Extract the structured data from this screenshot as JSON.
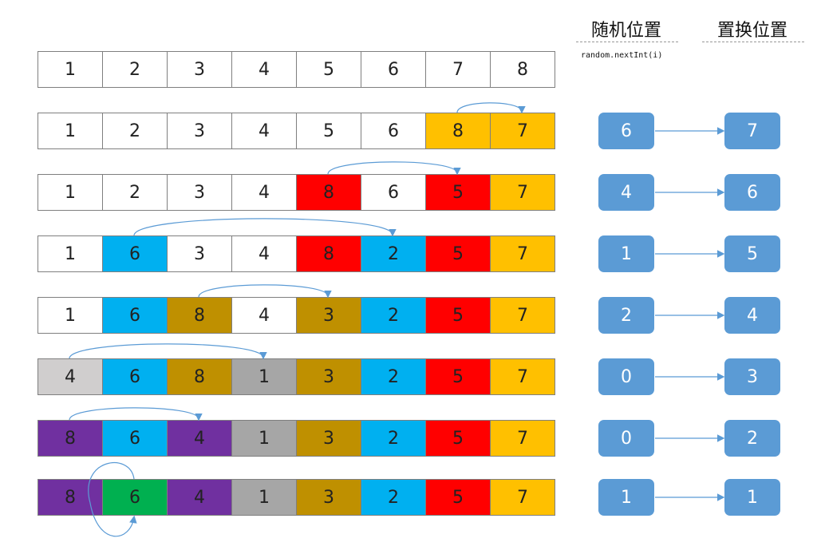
{
  "headers": {
    "random_position": "随机位置",
    "swap_position": "置换位置",
    "code": "random.nextInt(i)"
  },
  "colors": {
    "box": "#5b9bd5",
    "arrow": "#5b9bd5"
  },
  "rows": [
    {
      "values": [
        "1",
        "2",
        "3",
        "4",
        "5",
        "6",
        "7",
        "8"
      ],
      "colors": [
        "#fff",
        "#fff",
        "#fff",
        "#fff",
        "#fff",
        "#fff",
        "#fff",
        "#fff"
      ]
    },
    {
      "values": [
        "1",
        "2",
        "3",
        "4",
        "5",
        "6",
        "8",
        "7"
      ],
      "colors": [
        "#fff",
        "#fff",
        "#fff",
        "#fff",
        "#fff",
        "#fff",
        "#ffc000",
        "#ffc000"
      ],
      "random": "6",
      "swap": "7",
      "arc": [
        6,
        7
      ]
    },
    {
      "values": [
        "1",
        "2",
        "3",
        "4",
        "8",
        "6",
        "5",
        "7"
      ],
      "colors": [
        "#fff",
        "#fff",
        "#fff",
        "#fff",
        "#ff0000",
        "#fff",
        "#ff0000",
        "#ffc000"
      ],
      "random": "4",
      "swap": "6",
      "arc": [
        4,
        6
      ]
    },
    {
      "values": [
        "1",
        "6",
        "3",
        "4",
        "8",
        "2",
        "5",
        "7"
      ],
      "colors": [
        "#fff",
        "#00b0f0",
        "#fff",
        "#fff",
        "#ff0000",
        "#00b0f0",
        "#ff0000",
        "#ffc000"
      ],
      "random": "1",
      "swap": "5",
      "arc": [
        1,
        5
      ]
    },
    {
      "values": [
        "1",
        "6",
        "8",
        "4",
        "3",
        "2",
        "5",
        "7"
      ],
      "colors": [
        "#fff",
        "#00b0f0",
        "#bf9000",
        "#fff",
        "#bf9000",
        "#00b0f0",
        "#ff0000",
        "#ffc000"
      ],
      "random": "2",
      "swap": "4",
      "arc": [
        2,
        4
      ]
    },
    {
      "values": [
        "4",
        "6",
        "8",
        "1",
        "3",
        "2",
        "5",
        "7"
      ],
      "colors": [
        "#d0cece",
        "#00b0f0",
        "#bf9000",
        "#a6a6a6",
        "#bf9000",
        "#00b0f0",
        "#ff0000",
        "#ffc000"
      ],
      "random": "0",
      "swap": "3",
      "arc": [
        0,
        3
      ]
    },
    {
      "values": [
        "8",
        "6",
        "4",
        "1",
        "3",
        "2",
        "5",
        "7"
      ],
      "colors": [
        "#7030a0",
        "#00b0f0",
        "#7030a0",
        "#a6a6a6",
        "#bf9000",
        "#00b0f0",
        "#ff0000",
        "#ffc000"
      ],
      "random": "0",
      "swap": "2",
      "arc": [
        0,
        2
      ]
    },
    {
      "values": [
        "8",
        "6",
        "4",
        "1",
        "3",
        "2",
        "5",
        "7"
      ],
      "colors": [
        "#7030a0",
        "#00b050",
        "#7030a0",
        "#a6a6a6",
        "#bf9000",
        "#00b0f0",
        "#ff0000",
        "#ffc000"
      ],
      "random": "1",
      "swap": "1",
      "arc": [
        1,
        1
      ]
    }
  ]
}
